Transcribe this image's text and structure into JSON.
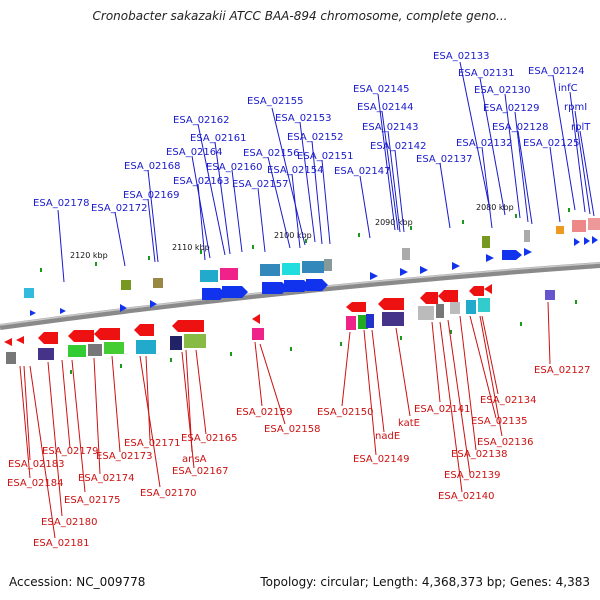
{
  "title": "Cronobacter sakazakii ATCC BAA-894 chromosome, complete geno...",
  "footer": {
    "accession": "Accession: NC_009778",
    "topology": "Topology: circular; Length: 4,368,373 bp; Genes: 4,383"
  },
  "colors": {
    "forward_label": "#1a1acc",
    "reverse_label": "#cc1111",
    "forward_gene": "#1133ee",
    "reverse_gene": "#ee1111",
    "backbone": "#8a8a8a"
  },
  "ticks": [
    "2120 kbp",
    "2110 kbp",
    "2100 kbp",
    "2090 kbp",
    "2080 kbp"
  ],
  "forward_labels": [
    "ESA_02133",
    "ESA_02131",
    "ESA_02124",
    "ESA_02145",
    "ESA_02130",
    "infC",
    "ESA_02144",
    "ESA_02129",
    "rpmI",
    "ESA_02155",
    "ESA_02153",
    "ESA_02143",
    "ESA_02128",
    "rplT",
    "ESA_02162",
    "ESA_02152",
    "ESA_02142",
    "ESA_02132",
    "ESA_02125",
    "ESA_02161",
    "ESA_02164",
    "ESA_02156",
    "ESA_02151",
    "ESA_02137",
    "ESA_02168",
    "ESA_02160",
    "ESA_02154",
    "ESA_02147",
    "ESA_02163",
    "ESA_02157",
    "ESA_02169",
    "ESA_02178",
    "ESA_02172"
  ],
  "reverse_labels": [
    "ESA_02127",
    "ESA_02134",
    "ESA_02141",
    "ESA_02159",
    "ESA_02150",
    "ESA_02135",
    "ESA_02165",
    "katE",
    "ESA_02158",
    "ESA_02171",
    "nadE",
    "ESA_02136",
    "ESA_02179",
    "ESA_02138",
    "ESA_02173",
    "ansA",
    "ESA_02149",
    "ESA_02183",
    "ESA_02167",
    "ESA_02174",
    "ESA_02139",
    "ESA_02184",
    "ESA_02175",
    "ESA_02170",
    "ESA_02140",
    "ESA_02180",
    "ESA_02181"
  ]
}
